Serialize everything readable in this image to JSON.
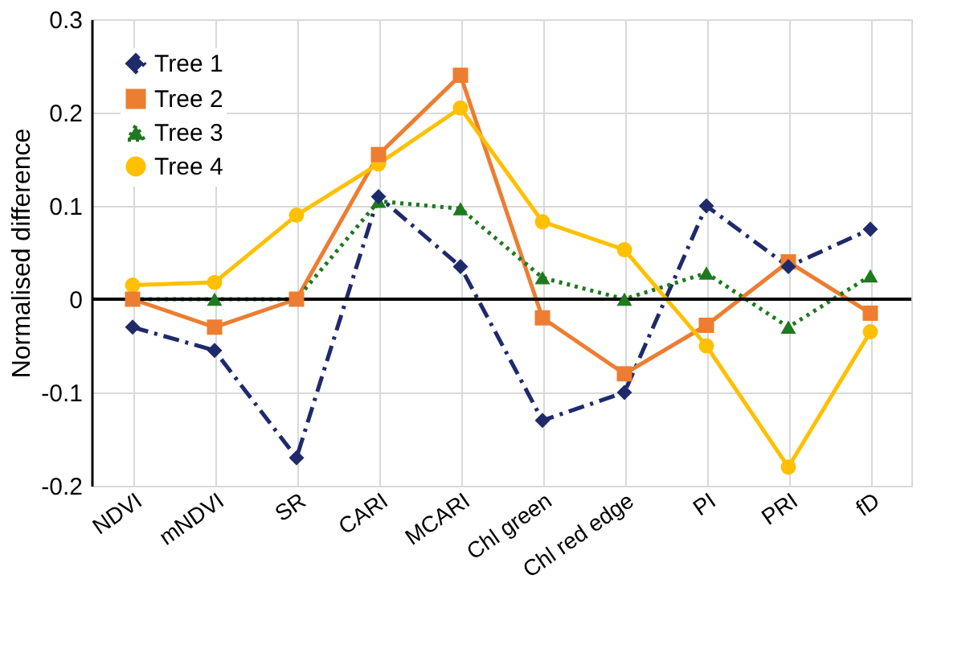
{
  "chart_data": {
    "type": "line",
    "ylabel": "Normalised difference",
    "categories": [
      "NDVI",
      "mNDVI",
      "SR",
      "CARI",
      "MCARI",
      "Chl green",
      "Chl red edge",
      "PI",
      "PRI",
      "fD"
    ],
    "series": [
      {
        "name": "Tree 1",
        "color": "#1f2a6b",
        "marker": "diamond",
        "line_style": "dashed",
        "values": [
          -0.03,
          -0.055,
          -0.17,
          0.11,
          0.035,
          -0.13,
          -0.1,
          0.1,
          0.035,
          0.075
        ]
      },
      {
        "name": "Tree 2",
        "color": "#ed7d31",
        "marker": "square",
        "line_style": "solid",
        "values": [
          0,
          -0.03,
          0,
          0.155,
          0.24,
          -0.02,
          -0.08,
          -0.028,
          0.04,
          -0.015
        ]
      },
      {
        "name": "Tree 3",
        "color": "#1e7a1e",
        "marker": "triangle",
        "line_style": "dotted",
        "values": [
          0,
          0,
          0,
          0.105,
          0.097,
          0.023,
          0,
          0.028,
          -0.03,
          0.025
        ]
      },
      {
        "name": "Tree 4",
        "color": "#ffc000",
        "marker": "circle",
        "line_style": "solid",
        "values": [
          0.015,
          0.018,
          0.09,
          0.145,
          0.205,
          0.083,
          0.053,
          -0.05,
          -0.18,
          -0.035
        ]
      }
    ],
    "ylim": [
      -0.2,
      0.3
    ],
    "yticks": [
      -0.2,
      -0.1,
      0,
      0.1,
      0.2,
      0.3
    ],
    "ref_lines": [
      {
        "axis": "y",
        "value": 0,
        "color": "#000000"
      }
    ],
    "grid": true,
    "legend": "top left"
  }
}
